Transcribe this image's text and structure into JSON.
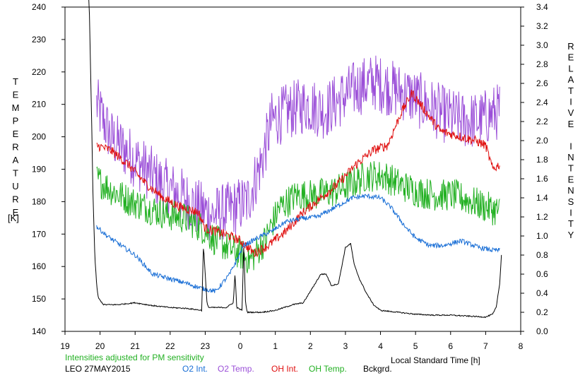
{
  "chart_data": {
    "type": "line",
    "title": "",
    "xlabel": "Local Standard Time [h]",
    "ylabel_left": "TEMPERATURE [K]",
    "ylabel_right": "RELATIVE INTENSITY",
    "left_axis_letters": [
      "T",
      "E",
      "M",
      "P",
      "E",
      "R",
      "A",
      "T",
      "U",
      "R",
      "E"
    ],
    "left_axis_unit": "[K]",
    "right_axis_letters": [
      "R",
      "E",
      "L",
      "A",
      "T",
      "I",
      "V",
      "E",
      "",
      "I",
      "N",
      "T",
      "E",
      "N",
      "S",
      "I",
      "T",
      "Y"
    ],
    "x_ticks": [
      19,
      20,
      21,
      22,
      23,
      0,
      1,
      2,
      3,
      4,
      5,
      6,
      7,
      8
    ],
    "x_range": [
      19,
      32
    ],
    "y_left_ticks": [
      140,
      150,
      160,
      170,
      180,
      190,
      200,
      210,
      220,
      230,
      240
    ],
    "y_left_range": [
      140,
      240
    ],
    "y_right_ticks": [
      "0.0",
      "0.2",
      "0.4",
      "0.6",
      "0.8",
      "1.0",
      "1.2",
      "1.4",
      "1.6",
      "1.8",
      "2.0",
      "2.2",
      "2.4",
      "2.6",
      "2.8",
      "3.0",
      "3.2",
      "3.4"
    ],
    "y_right_range": [
      0,
      3.4
    ],
    "note": "Intensities adjusted for PM sensitivity",
    "station_date": "LEO 27MAY2015",
    "legend": [
      {
        "name": "O2 Int.",
        "color": "#1a6fd6"
      },
      {
        "name": "O2 Temp.",
        "color": "#9b4fd8"
      },
      {
        "name": "OH Int.",
        "color": "#e01010"
      },
      {
        "name": "OH Temp.",
        "color": "#22b022"
      },
      {
        "name": "Bckgrd.",
        "color": "#000000"
      }
    ],
    "series": [
      {
        "name": "O2 Temp.",
        "axis": "left",
        "color": "#9b4fd8",
        "noise": 9,
        "x": [
          19.9,
          20.3,
          20.8,
          21.3,
          21.8,
          22.3,
          22.8,
          23.2,
          23.6,
          24.2,
          24.6,
          24.9,
          25.4,
          25.9,
          26.4,
          26.9,
          27.3,
          27.8,
          28.3,
          28.8,
          29.3,
          29.8,
          30.3,
          30.8,
          31.2,
          31.4
        ],
        "y": [
          210,
          200,
          195,
          190,
          185,
          182,
          178,
          176,
          177,
          180,
          192,
          205,
          208,
          210,
          208,
          212,
          215,
          217,
          215,
          213,
          210,
          207,
          205,
          205,
          207,
          208
        ]
      },
      {
        "name": "OH Temp.",
        "axis": "left",
        "color": "#22b022",
        "noise": 5,
        "x": [
          19.9,
          20.4,
          20.9,
          21.4,
          21.9,
          22.4,
          22.9,
          23.3,
          23.8,
          24.3,
          24.7,
          25.1,
          25.6,
          26.1,
          26.6,
          27.1,
          27.6,
          28.1,
          28.6,
          29.1,
          29.6,
          30.1,
          30.6,
          31.1,
          31.4
        ],
        "y": [
          187,
          183,
          180,
          178,
          176,
          175,
          172,
          168,
          165,
          162,
          168,
          178,
          182,
          182,
          183,
          185,
          188,
          188,
          185,
          183,
          182,
          182,
          180,
          178,
          177
        ]
      },
      {
        "name": "OH Int.",
        "axis": "right",
        "color": "#e01010",
        "noise": 0.05,
        "x": [
          19.9,
          20.3,
          20.8,
          21.3,
          21.8,
          22.3,
          22.8,
          23.0,
          23.3,
          23.7,
          24.0,
          24.4,
          24.8,
          25.3,
          25.8,
          26.3,
          26.8,
          27.3,
          27.8,
          28.2,
          28.6,
          28.9,
          29.3,
          29.7,
          30.2,
          30.7,
          31.0,
          31.2,
          31.4
        ],
        "y": [
          1.95,
          1.9,
          1.75,
          1.55,
          1.4,
          1.3,
          1.25,
          1.08,
          1.05,
          1.0,
          0.95,
          0.82,
          0.9,
          1.05,
          1.25,
          1.4,
          1.55,
          1.75,
          1.9,
          1.95,
          2.3,
          2.5,
          2.3,
          2.1,
          2.05,
          2.0,
          1.95,
          1.7,
          1.75
        ]
      },
      {
        "name": "O2 Int.",
        "axis": "right",
        "color": "#1a6fd6",
        "noise": 0.025,
        "x": [
          19.9,
          20.2,
          20.6,
          21.0,
          21.5,
          22.0,
          22.5,
          22.9,
          23.3,
          23.7,
          24.1,
          24.6,
          24.9,
          25.3,
          25.7,
          26.2,
          26.7,
          27.2,
          27.6,
          28.0,
          28.3,
          28.7,
          29.0,
          29.4,
          29.8,
          30.3,
          30.8,
          31.2,
          31.4
        ],
        "y": [
          1.1,
          1.0,
          0.9,
          0.8,
          0.6,
          0.55,
          0.5,
          0.45,
          0.42,
          0.6,
          0.9,
          1.0,
          1.05,
          1.15,
          1.18,
          1.2,
          1.3,
          1.4,
          1.42,
          1.4,
          1.3,
          1.1,
          0.98,
          0.9,
          0.9,
          0.95,
          0.88,
          0.85,
          0.85
        ]
      },
      {
        "name": "Bckgrd.",
        "axis": "right",
        "color": "#000000",
        "noise": 0.006,
        "x": [
          19.68,
          19.75,
          19.8,
          19.85,
          19.9,
          19.95,
          20.1,
          20.5,
          21.0,
          21.5,
          22.0,
          22.5,
          22.9,
          22.95,
          23.05,
          23.1,
          23.2,
          23.6,
          23.8,
          23.85,
          23.9,
          24.05,
          24.1,
          24.15,
          24.2,
          24.6,
          25.0,
          25.5,
          25.8,
          26.0,
          26.3,
          26.45,
          26.6,
          26.8,
          27.0,
          27.15,
          27.25,
          27.4,
          27.6,
          27.8,
          28.0,
          28.5,
          29.0,
          29.5,
          30.0,
          30.5,
          31.0,
          31.2,
          31.3,
          31.4,
          31.45
        ],
        "y": [
          3.6,
          2.4,
          1.4,
          0.8,
          0.5,
          0.35,
          0.28,
          0.28,
          0.3,
          0.27,
          0.25,
          0.24,
          0.22,
          0.9,
          0.3,
          0.25,
          0.25,
          0.25,
          0.3,
          0.6,
          0.25,
          0.22,
          0.9,
          0.3,
          0.2,
          0.2,
          0.22,
          0.28,
          0.3,
          0.42,
          0.6,
          0.6,
          0.48,
          0.5,
          0.88,
          0.92,
          0.7,
          0.55,
          0.4,
          0.28,
          0.22,
          0.2,
          0.18,
          0.17,
          0.17,
          0.16,
          0.15,
          0.18,
          0.25,
          0.5,
          0.8
        ]
      }
    ]
  }
}
